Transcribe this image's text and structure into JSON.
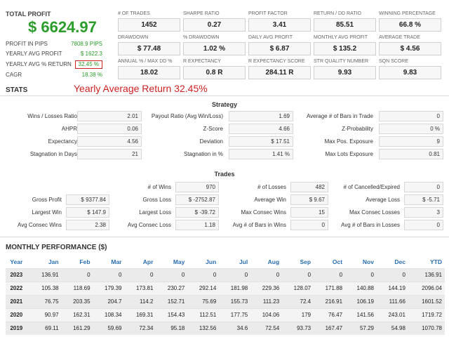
{
  "summary": {
    "total_profit_label": "TOTAL PROFIT",
    "total_profit_value": "$ 6624.97",
    "rows": [
      {
        "label": "PROFIT IN PIPS",
        "value": "7808.9 PIPS"
      },
      {
        "label": "YEARLY AVG PROFIT",
        "value": "$ 1622.3"
      },
      {
        "label": "YEARLY AVG % RETURN",
        "value": "32.45 %"
      },
      {
        "label": "CAGR",
        "value": "18.38 %"
      }
    ]
  },
  "metrics": [
    {
      "label": "# OF TRADES",
      "value": "1452"
    },
    {
      "label": "SHARPE RATIO",
      "value": "0.27"
    },
    {
      "label": "PROFIT FACTOR",
      "value": "3.41"
    },
    {
      "label": "RETURN / DD RATIO",
      "value": "85.51"
    },
    {
      "label": "WINNING PERCENTAGE",
      "value": "66.8 %"
    },
    {
      "label": "DRAWDOWN",
      "value": "$ 77.48"
    },
    {
      "label": "% DRAWDOWN",
      "value": "1.02 %"
    },
    {
      "label": "DAILY AVG PROFIT",
      "value": "$ 6.87"
    },
    {
      "label": "MONTHLY AVG PROFIT",
      "value": "$ 135.2"
    },
    {
      "label": "AVERAGE TRADE",
      "value": "$ 4.56"
    },
    {
      "label": "ANNUAL % / MAX DD %",
      "value": "18.02"
    },
    {
      "label": "R EXPECTANCY",
      "value": "0.8 R"
    },
    {
      "label": "R EXPECTANCY SCORE",
      "value": "284.11 R"
    },
    {
      "label": "STR QUALITY NUMBER",
      "value": "9.93"
    },
    {
      "label": "SQN SCORE",
      "value": "9.83"
    }
  ],
  "stats": {
    "title": "STATS",
    "subtitle": "Yearly Average Return 32.45%"
  },
  "strategy": {
    "title": "Strategy",
    "items": [
      {
        "label": "Wins / Losses Ratio",
        "value": "2.01"
      },
      {
        "label": "Payout Ratio (Avg Win/Loss)",
        "value": "1.69"
      },
      {
        "label": "Average # of Bars in Trade",
        "value": "0"
      },
      {
        "label": "AHPR",
        "value": "0.06"
      },
      {
        "label": "Z-Score",
        "value": "4.66"
      },
      {
        "label": "Z-Probability",
        "value": "0 %"
      },
      {
        "label": "Expectancy",
        "value": "4.56"
      },
      {
        "label": "Deviation",
        "value": "$ 17.51"
      },
      {
        "label": "Max Pos. Exposure",
        "value": "9"
      },
      {
        "label": "Stagnation in Days",
        "value": "21"
      },
      {
        "label": "Stagnation in %",
        "value": "1.41 %"
      },
      {
        "label": "Max Lots Exposure",
        "value": "0.81"
      }
    ]
  },
  "trades": {
    "title": "Trades",
    "items": [
      {
        "label": "",
        "value": ""
      },
      {
        "label": "# of Wins",
        "value": "970"
      },
      {
        "label": "# of Losses",
        "value": "482"
      },
      {
        "label": "# of Cancelled/Expired",
        "value": "0"
      },
      {
        "label": "Gross Profit",
        "value": "$ 9377.84"
      },
      {
        "label": "Gross Loss",
        "value": "$ -2752.87"
      },
      {
        "label": "Average Win",
        "value": "$ 9.67"
      },
      {
        "label": "Average Loss",
        "value": "$ -5.71"
      },
      {
        "label": "Largest Win",
        "value": "$ 147.9"
      },
      {
        "label": "Largest Loss",
        "value": "$ -39.72"
      },
      {
        "label": "Max Consec Wins",
        "value": "15"
      },
      {
        "label": "Max Consec Losses",
        "value": "3"
      },
      {
        "label": "Avg Consec Wins",
        "value": "2.38"
      },
      {
        "label": "Avg Consec Loss",
        "value": "1.18"
      },
      {
        "label": "Avg # of Bars in Wins",
        "value": "0"
      },
      {
        "label": "Avg # of Bars in Losses",
        "value": "0"
      }
    ]
  },
  "monthly": {
    "title": "MONTHLY PERFORMANCE ($)",
    "headers": [
      "Year",
      "Jan",
      "Feb",
      "Mar",
      "Apr",
      "May",
      "Jun",
      "Jul",
      "Aug",
      "Sep",
      "Oct",
      "Nov",
      "Dec",
      "YTD"
    ],
    "rows": [
      [
        "2023",
        "136.91",
        "0",
        "0",
        "0",
        "0",
        "0",
        "0",
        "0",
        "0",
        "0",
        "0",
        "0",
        "136.91"
      ],
      [
        "2022",
        "105.38",
        "118.69",
        "179.39",
        "173.81",
        "230.27",
        "292.14",
        "181.98",
        "229.36",
        "128.07",
        "171.88",
        "140.88",
        "144.19",
        "2096.04"
      ],
      [
        "2021",
        "76.75",
        "203.35",
        "204.7",
        "114.2",
        "152.71",
        "75.69",
        "155.73",
        "111.23",
        "72.4",
        "216.91",
        "106.19",
        "111.66",
        "1601.52"
      ],
      [
        "2020",
        "90.97",
        "162.31",
        "108.34",
        "169.31",
        "154.43",
        "112.51",
        "177.75",
        "104.06",
        "179",
        "76.47",
        "141.56",
        "243.01",
        "1719.72"
      ],
      [
        "2019",
        "69.11",
        "161.29",
        "59.69",
        "72.34",
        "95.18",
        "132.56",
        "34.6",
        "72.54",
        "93.73",
        "167.47",
        "57.29",
        "54.98",
        "1070.78"
      ]
    ]
  }
}
